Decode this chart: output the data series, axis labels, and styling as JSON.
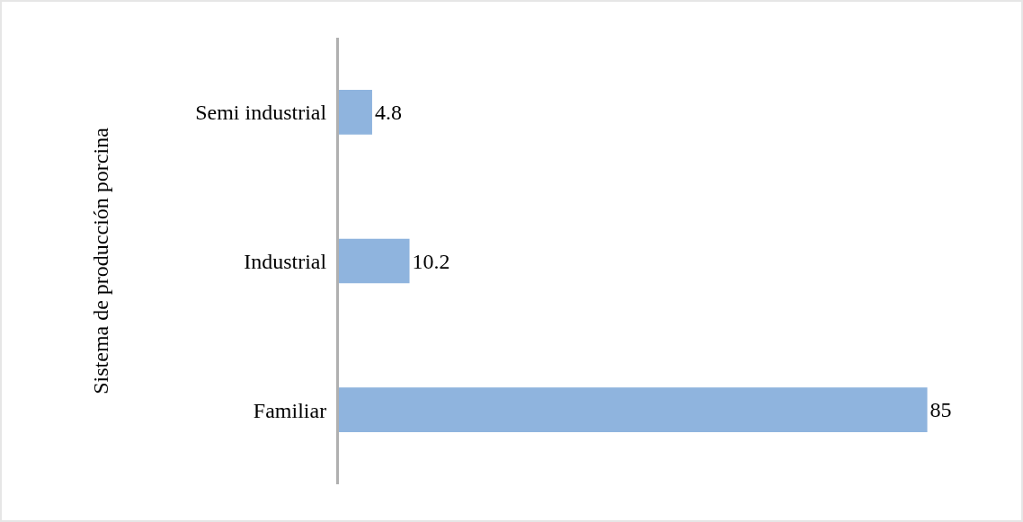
{
  "chart_data": {
    "type": "bar",
    "orientation": "horizontal",
    "ylabel": "Sistema de producción porcina",
    "categories": [
      "Semi industrial",
      "Industrial",
      "Familiar"
    ],
    "values": [
      4.8,
      10.2,
      85
    ],
    "color": "#8fb4de",
    "data_labels": true,
    "tick_labels": "y",
    "grid": false
  }
}
